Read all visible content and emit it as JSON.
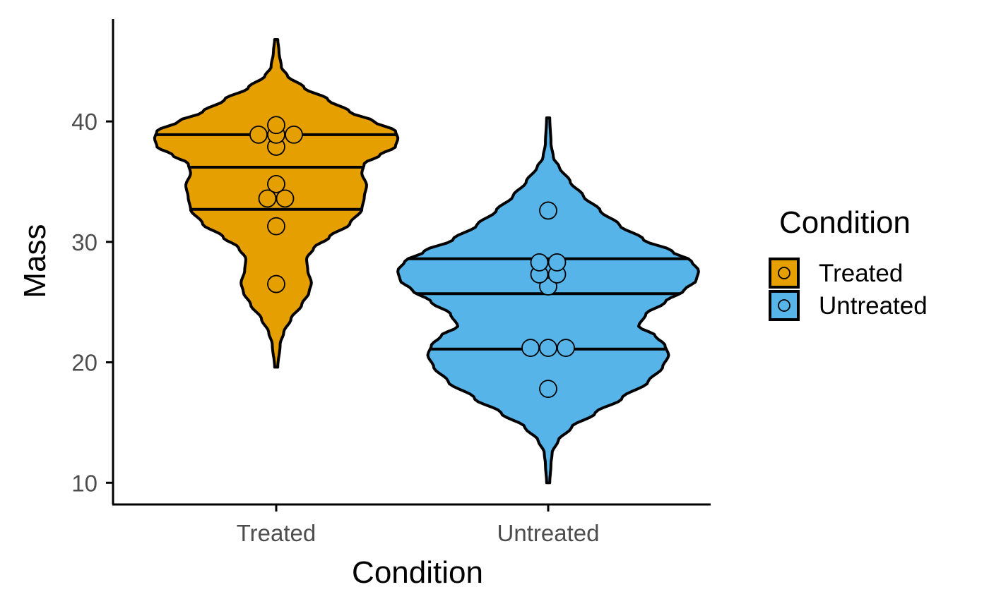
{
  "chart_data": {
    "type": "violin",
    "xlabel": "Condition",
    "ylabel": "Mass",
    "ylim": [
      8.2,
      48.5
    ],
    "yticks": [
      10,
      20,
      30,
      40
    ],
    "categories": [
      "Treated",
      "Untreated"
    ],
    "colors": {
      "Treated": "#E69F00",
      "Untreated": "#56B4E9"
    },
    "legend": {
      "title": "Condition",
      "position": "right",
      "entries": [
        "Treated",
        "Untreated"
      ]
    },
    "grid": false,
    "series": [
      {
        "category": "Treated",
        "color": "#E69F00",
        "range": [
          19.6,
          46.8
        ],
        "quantiles": [
          32.7,
          36.2,
          38.9
        ],
        "points": [
          26.5,
          31.3,
          33.6,
          33.6,
          34.8,
          37.9,
          38.9,
          38.9,
          38.9,
          39.7
        ],
        "density_profile": [
          [
            19.6,
            0.0
          ],
          [
            21.5,
            0.02
          ],
          [
            22.5,
            0.05
          ],
          [
            23.6,
            0.11
          ],
          [
            24.8,
            0.2
          ],
          [
            25.8,
            0.26
          ],
          [
            26.6,
            0.28
          ],
          [
            27.6,
            0.25
          ],
          [
            28.6,
            0.24
          ],
          [
            29.5,
            0.3
          ],
          [
            30.4,
            0.43
          ],
          [
            31.5,
            0.6
          ],
          [
            32.7,
            0.7
          ],
          [
            33.7,
            0.72
          ],
          [
            34.7,
            0.74
          ],
          [
            35.7,
            0.7
          ],
          [
            36.5,
            0.72
          ],
          [
            37.2,
            0.85
          ],
          [
            37.9,
            0.98
          ],
          [
            38.6,
            1.0
          ],
          [
            39.2,
            0.98
          ],
          [
            40.0,
            0.8
          ],
          [
            40.8,
            0.6
          ],
          [
            41.8,
            0.42
          ],
          [
            42.8,
            0.22
          ],
          [
            43.8,
            0.08
          ],
          [
            44.5,
            0.03
          ],
          [
            45.8,
            0.01
          ],
          [
            46.8,
            0.0
          ]
        ]
      },
      {
        "category": "Untreated",
        "color": "#56B4E9",
        "range": [
          10.0,
          40.3
        ],
        "quantiles": [
          21.1,
          25.7,
          28.6
        ],
        "points": [
          17.8,
          21.2,
          21.2,
          21.2,
          26.3,
          27.3,
          27.3,
          28.3,
          28.3,
          32.6
        ],
        "density_profile": [
          [
            10.0,
            0.0
          ],
          [
            11.5,
            0.01
          ],
          [
            12.5,
            0.02
          ],
          [
            13.5,
            0.07
          ],
          [
            14.6,
            0.18
          ],
          [
            15.8,
            0.38
          ],
          [
            17.0,
            0.6
          ],
          [
            18.4,
            0.82
          ],
          [
            19.6,
            0.94
          ],
          [
            20.6,
            0.99
          ],
          [
            21.4,
            0.96
          ],
          [
            22.2,
            0.88
          ],
          [
            23.0,
            0.74
          ],
          [
            24.0,
            0.8
          ],
          [
            25.0,
            0.96
          ],
          [
            26.0,
            1.12
          ],
          [
            26.8,
            1.22
          ],
          [
            27.6,
            1.24
          ],
          [
            28.4,
            1.18
          ],
          [
            29.2,
            1.02
          ],
          [
            30.2,
            0.78
          ],
          [
            31.4,
            0.58
          ],
          [
            32.6,
            0.42
          ],
          [
            33.8,
            0.28
          ],
          [
            35.0,
            0.17
          ],
          [
            36.2,
            0.08
          ],
          [
            37.0,
            0.03
          ],
          [
            38.2,
            0.01
          ],
          [
            40.3,
            0.0
          ]
        ]
      }
    ]
  }
}
